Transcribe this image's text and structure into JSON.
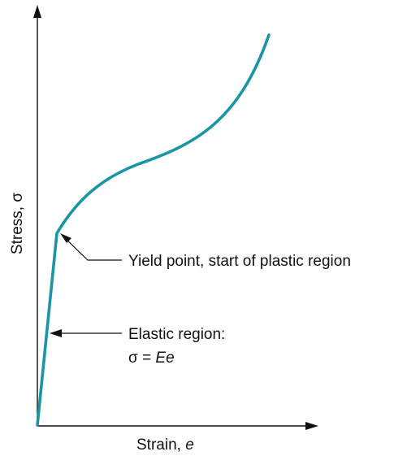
{
  "axes": {
    "x_label": "Strain, ",
    "x_symbol": "e",
    "y_label": "Stress, σ"
  },
  "annotations": {
    "yield": "Yield point, start of plastic region",
    "elastic_title": "Elastic region:",
    "elastic_eq_prefix": "σ = ",
    "elastic_eq_var": "Ee"
  },
  "colors": {
    "curve": "#1b95a6",
    "ink": "#111111"
  }
}
